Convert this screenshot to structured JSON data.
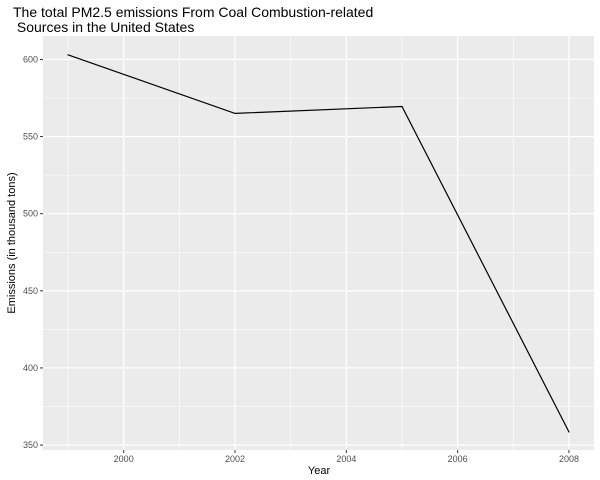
{
  "chart_data": {
    "type": "line",
    "title_line1": "The total PM2.5 emissions From Coal Combustion-related",
    "title_line2": " Sources in the United States",
    "xlabel": "Year",
    "ylabel": "Emissions (in thousand tons)",
    "x": [
      1999,
      2002,
      2005,
      2008
    ],
    "y": [
      603,
      565,
      569.5,
      358.5
    ],
    "xlim": [
      1998.55,
      2008.45
    ],
    "ylim": [
      346.8,
      615.2
    ],
    "x_ticks": [
      2000,
      2002,
      2004,
      2006,
      2008
    ],
    "x_tick_labels": [
      "2000",
      "2002",
      "2004",
      "2006",
      "2008"
    ],
    "y_ticks": [
      350,
      400,
      450,
      500,
      550,
      600
    ],
    "y_tick_labels": [
      "350",
      "400",
      "450",
      "500",
      "550",
      "600"
    ],
    "x_minor": [
      1999,
      2001,
      2003,
      2005,
      2007
    ],
    "y_minor": [
      375,
      425,
      475,
      525,
      575
    ],
    "grid": true,
    "legend": "none",
    "colors": {
      "panel": "#ebebeb",
      "grid": "#ffffff",
      "line": "#000000",
      "tick": "#4d4d4d"
    }
  }
}
